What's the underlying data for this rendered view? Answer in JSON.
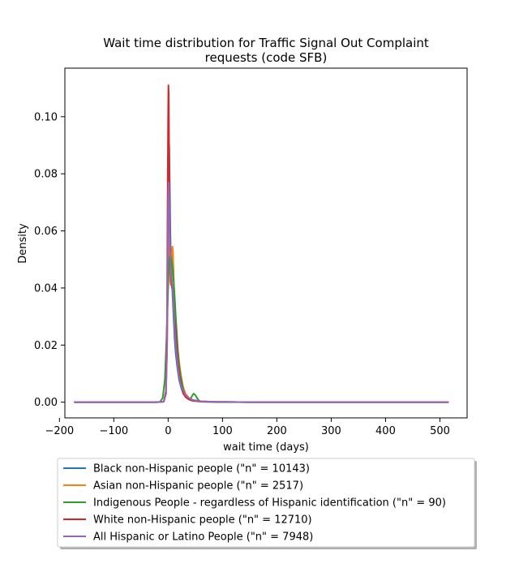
{
  "chart_data": {
    "type": "line",
    "title": "Wait time distribution  for Traffic Signal Out Complaint requests (code SFB)",
    "title_lines": [
      "Wait time distribution  for Traffic Signal Out Complaint",
      "requests (code SFB)"
    ],
    "xlabel": "wait time (days)",
    "ylabel": "Density",
    "xlim": [
      -190,
      550
    ],
    "ylim": [
      -0.0055,
      0.117
    ],
    "xticks": [
      -200,
      -100,
      0,
      100,
      200,
      300,
      400,
      500
    ],
    "xtick_labels": [
      "−200",
      "−100",
      "0",
      "100",
      "200",
      "300",
      "400",
      "500"
    ],
    "yticks": [
      0.0,
      0.02,
      0.04,
      0.06,
      0.08,
      0.1
    ],
    "ytick_labels": [
      "0.00",
      "0.02",
      "0.04",
      "0.06",
      "0.08",
      "0.10"
    ],
    "grid": false,
    "legend_position": "below",
    "series": [
      {
        "name": "Black non-Hispanic people (\"n\" = 10143)",
        "color": "#1f77b4",
        "x": [
          -172,
          -60,
          -20,
          -8,
          -4,
          -2,
          0,
          1,
          2,
          3,
          4,
          5,
          6,
          7,
          8,
          10,
          12,
          14,
          17,
          20,
          24,
          28,
          32,
          38,
          45,
          60,
          90,
          150,
          300,
          515
        ],
        "y": [
          0,
          0,
          0,
          0.0002,
          0.003,
          0.02,
          0.06,
          0.085,
          0.09,
          0.075,
          0.06,
          0.05,
          0.045,
          0.042,
          0.038,
          0.03,
          0.022,
          0.017,
          0.012,
          0.008,
          0.005,
          0.003,
          0.002,
          0.001,
          0.0006,
          0.0003,
          0.0001,
          0,
          0,
          0
        ]
      },
      {
        "name": "Asian non-Hispanic people (\"n\" = 2517)",
        "color": "#ff7f0e",
        "x": [
          -172,
          -60,
          -20,
          -8,
          -4,
          -2,
          0,
          1,
          2,
          3,
          4,
          5,
          6,
          7,
          8,
          9,
          10,
          11,
          12,
          13,
          14,
          16,
          18,
          21,
          24,
          28,
          32,
          38,
          45,
          60,
          90,
          150,
          300,
          515
        ],
        "y": [
          0,
          0,
          0,
          0.0002,
          0.003,
          0.018,
          0.05,
          0.065,
          0.062,
          0.05,
          0.042,
          0.041,
          0.046,
          0.052,
          0.0545,
          0.052,
          0.045,
          0.038,
          0.032,
          0.029,
          0.027,
          0.022,
          0.018,
          0.013,
          0.009,
          0.005,
          0.003,
          0.0015,
          0.0008,
          0.0003,
          0.0001,
          0,
          0,
          0
        ]
      },
      {
        "name": "Indigenous People - regardless of Hispanic identification (\"n\" = 90)",
        "color": "#2ca02c",
        "x": [
          -172,
          -60,
          -25,
          -15,
          -10,
          -6,
          -3,
          0,
          2,
          4,
          6,
          8,
          10,
          12,
          14,
          16,
          18,
          20,
          23,
          26,
          30,
          34,
          38,
          42,
          45,
          47,
          50,
          53,
          56,
          60,
          70,
          90,
          150,
          300,
          515
        ],
        "y": [
          0,
          0,
          0,
          0.0001,
          0.0015,
          0.008,
          0.022,
          0.04,
          0.05,
          0.052,
          0.05,
          0.047,
          0.043,
          0.037,
          0.03,
          0.024,
          0.018,
          0.013,
          0.009,
          0.006,
          0.003,
          0.0015,
          0.001,
          0.0015,
          0.0025,
          0.003,
          0.0025,
          0.0015,
          0.0007,
          0.0002,
          0.0001,
          0,
          0,
          0,
          0
        ]
      },
      {
        "name": "White non-Hispanic people (\"n\" = 12710)",
        "color": "#d62728",
        "x": [
          -172,
          -60,
          -20,
          -8,
          -4,
          -2,
          -1,
          0,
          0.5,
          1,
          1.5,
          2,
          3,
          4,
          5,
          6,
          7,
          8,
          9,
          10,
          11,
          12,
          13,
          14,
          16,
          18,
          21,
          24,
          28,
          32,
          38,
          45,
          60,
          90,
          150,
          300,
          515
        ],
        "y": [
          0,
          0,
          0,
          0.0002,
          0.004,
          0.03,
          0.07,
          0.1,
          0.111,
          0.108,
          0.095,
          0.08,
          0.06,
          0.05,
          0.045,
          0.042,
          0.04,
          0.04,
          0.037,
          0.033,
          0.03,
          0.028,
          0.027,
          0.024,
          0.019,
          0.014,
          0.009,
          0.006,
          0.003,
          0.0018,
          0.001,
          0.0005,
          0.0002,
          0.0001,
          0,
          0,
          0
        ]
      },
      {
        "name": "All Hispanic or Latino People (\"n\" = 7948)",
        "color": "#9467bd",
        "x": [
          -172,
          -60,
          -20,
          -8,
          -4,
          -2,
          -1,
          0,
          1,
          2,
          3,
          4,
          5,
          6,
          8,
          10,
          12,
          14,
          16,
          18,
          20,
          22,
          25,
          28,
          32,
          38,
          45,
          60,
          90,
          150,
          300,
          515
        ],
        "y": [
          0,
          0,
          0,
          0.0002,
          0.003,
          0.02,
          0.045,
          0.07,
          0.077,
          0.07,
          0.058,
          0.05,
          0.046,
          0.044,
          0.04,
          0.033,
          0.026,
          0.02,
          0.016,
          0.012,
          0.009,
          0.007,
          0.005,
          0.004,
          0.0025,
          0.0015,
          0.0008,
          0.0003,
          0.0001,
          0,
          0,
          0
        ]
      }
    ]
  }
}
